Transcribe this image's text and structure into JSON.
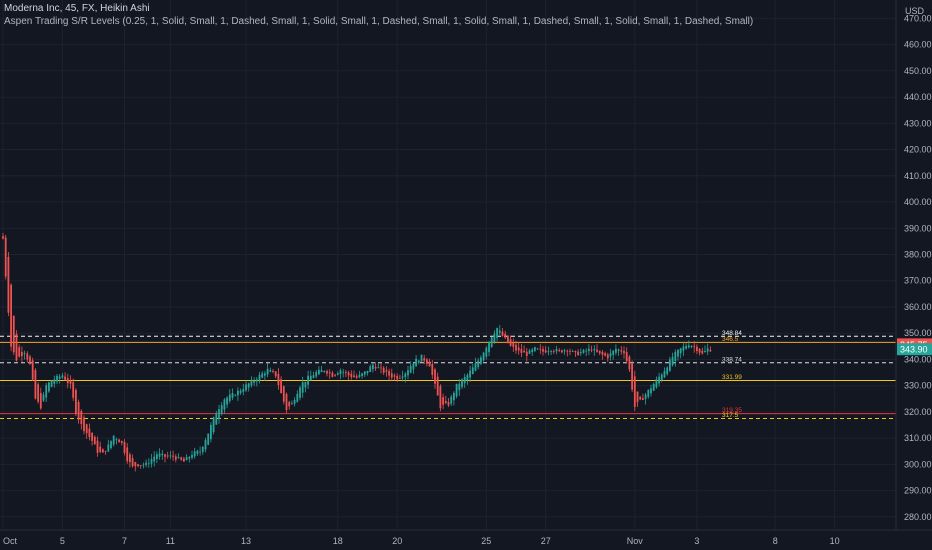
{
  "legend": {
    "line1": "Moderna Inc, 45, FX, Heikin Ashi",
    "line2": "Aspen Trading S/R Levels (0.25, 1, Solid, Small, 1, Dashed, Small, 1, Solid, Small, 1, Dashed, Small, 1, Solid, Small, 1, Dashed, Small, 1, Solid, Small, 1, Dashed, Small)"
  },
  "chart_data": {
    "type": "candlestick",
    "currency": "USD",
    "ylim": [
      275,
      477
    ],
    "y_ticks": [
      470,
      460,
      450,
      440,
      430,
      420,
      410,
      400,
      390,
      380,
      370,
      360,
      350,
      340,
      330,
      320,
      310,
      300,
      290,
      280
    ],
    "x_ticks": [
      {
        "label": "Oct",
        "i": 0
      },
      {
        "label": "5",
        "i": 22
      },
      {
        "label": "7",
        "i": 45
      },
      {
        "label": "11",
        "i": 62
      },
      {
        "label": "13",
        "i": 90
      },
      {
        "label": "18",
        "i": 124
      },
      {
        "label": "20",
        "i": 146
      },
      {
        "label": "25",
        "i": 179
      },
      {
        "label": "27",
        "i": 201
      },
      {
        "label": "Nov",
        "i": 234
      },
      {
        "label": "3",
        "i": 257
      },
      {
        "label": "8",
        "i": 286
      },
      {
        "label": "10",
        "i": 308
      }
    ],
    "colors": {
      "up": "#26a69a",
      "down": "#ef5350",
      "grid": "#1e222d",
      "axis_text": "#b2b5be"
    },
    "levels": [
      {
        "value": 348.84,
        "label": "348.84",
        "color": "#f7f7f7",
        "style": "dashed"
      },
      {
        "value": 346.5,
        "label": "346.5",
        "color": "#f5a623",
        "style": "solid"
      },
      {
        "value": 338.74,
        "label": "338.74",
        "color": "#e0e0e0",
        "style": "dashed"
      },
      {
        "value": 331.99,
        "label": "331.99",
        "color": "#f5c518",
        "style": "solid"
      },
      {
        "value": 319.35,
        "label": "319.35",
        "color": "#e53935",
        "style": "solid"
      },
      {
        "value": 317.5,
        "label": "317.5",
        "color": "#f5c518",
        "style": "dashed"
      }
    ],
    "price_labels": [
      {
        "value": 345.75,
        "text": "345.75",
        "bg": "#ef5350"
      },
      {
        "value": 343.9,
        "text": "343.90",
        "bg": "#26a69a"
      }
    ],
    "waypoints": [
      [
        0,
        386
      ],
      [
        1,
        372
      ],
      [
        3,
        345
      ],
      [
        5,
        340
      ],
      [
        8,
        343
      ],
      [
        10,
        338
      ],
      [
        12,
        325
      ],
      [
        14,
        322
      ],
      [
        16,
        330
      ],
      [
        18,
        332
      ],
      [
        20,
        333
      ],
      [
        22,
        334
      ],
      [
        25,
        330
      ],
      [
        27,
        320
      ],
      [
        29,
        315
      ],
      [
        31,
        312
      ],
      [
        33,
        309
      ],
      [
        35,
        305
      ],
      [
        37,
        304
      ],
      [
        39,
        307
      ],
      [
        41,
        311
      ],
      [
        44,
        308
      ],
      [
        46,
        302
      ],
      [
        48,
        299
      ],
      [
        50,
        300
      ],
      [
        53,
        300
      ],
      [
        57,
        304
      ],
      [
        60,
        303
      ],
      [
        63,
        303
      ],
      [
        67,
        301
      ],
      [
        70,
        304
      ],
      [
        73,
        305
      ],
      [
        76,
        312
      ],
      [
        79,
        320
      ],
      [
        82,
        325
      ],
      [
        86,
        327
      ],
      [
        90,
        330
      ],
      [
        94,
        333
      ],
      [
        98,
        336
      ],
      [
        101,
        334
      ],
      [
        103,
        327
      ],
      [
        105,
        321
      ],
      [
        107,
        323
      ],
      [
        110,
        330
      ],
      [
        113,
        333
      ],
      [
        116,
        335
      ],
      [
        119,
        336
      ],
      [
        122,
        334
      ],
      [
        125,
        336
      ],
      [
        128,
        334
      ],
      [
        131,
        333
      ],
      [
        134,
        335
      ],
      [
        137,
        338
      ],
      [
        140,
        336
      ],
      [
        143,
        334
      ],
      [
        146,
        333
      ],
      [
        149,
        335
      ],
      [
        152,
        339
      ],
      [
        155,
        341
      ],
      [
        158,
        338
      ],
      [
        160,
        330
      ],
      [
        162,
        322
      ],
      [
        165,
        323
      ],
      [
        168,
        330
      ],
      [
        172,
        334
      ],
      [
        175,
        338
      ],
      [
        178,
        343
      ],
      [
        181,
        349
      ],
      [
        183,
        352
      ],
      [
        185,
        349
      ],
      [
        188,
        345
      ],
      [
        191,
        343
      ],
      [
        194,
        342
      ],
      [
        197,
        344
      ],
      [
        200,
        343
      ],
      [
        203,
        344
      ],
      [
        206,
        343
      ],
      [
        209,
        344
      ],
      [
        212,
        342
      ],
      [
        215,
        343
      ],
      [
        218,
        344
      ],
      [
        221,
        342
      ],
      [
        224,
        341
      ],
      [
        227,
        344
      ],
      [
        230,
        343
      ],
      [
        232,
        336
      ],
      [
        234,
        322
      ],
      [
        236,
        324
      ],
      [
        239,
        328
      ],
      [
        242,
        332
      ],
      [
        245,
        336
      ],
      [
        248,
        341
      ],
      [
        251,
        344
      ],
      [
        254,
        346
      ],
      [
        257,
        344
      ],
      [
        259,
        342
      ],
      [
        261,
        344
      ],
      [
        262,
        343.9
      ]
    ]
  }
}
